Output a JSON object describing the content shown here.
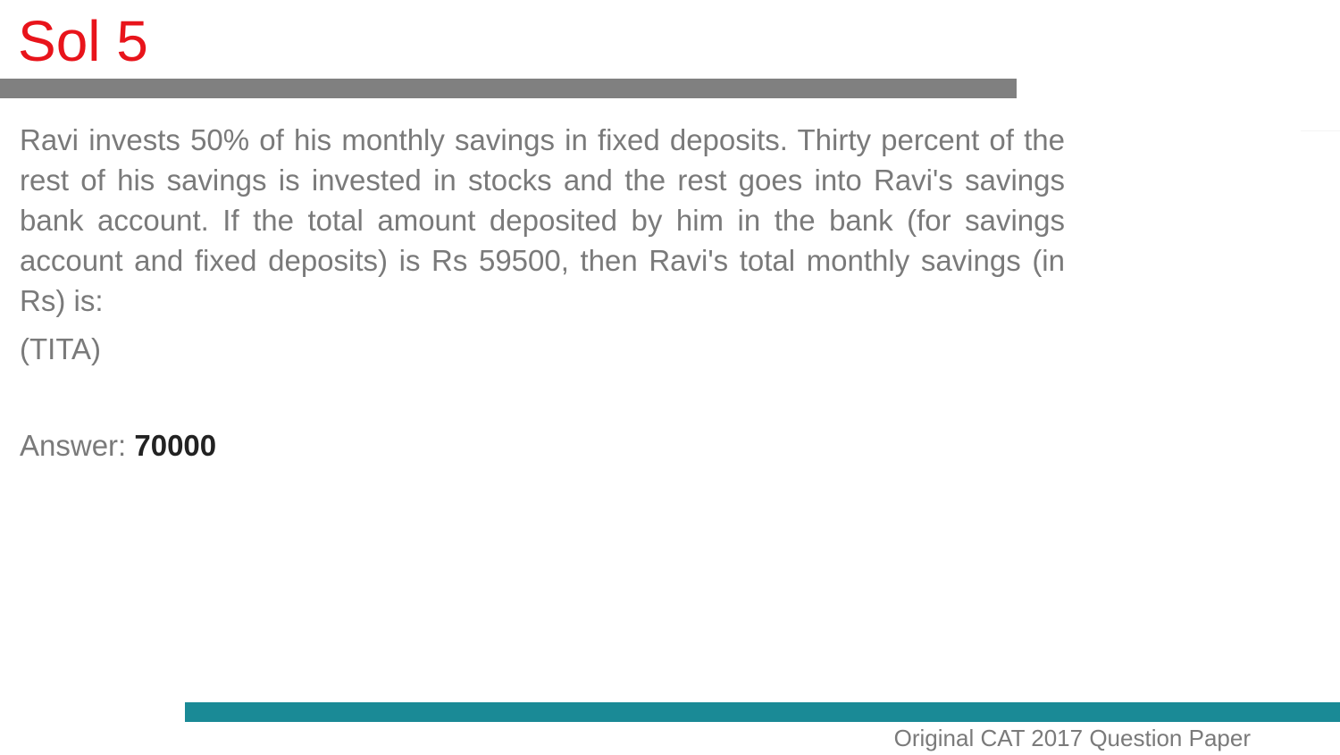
{
  "slide": {
    "title": "Sol 5",
    "question": "Ravi invests 50% of his monthly savings in fixed deposits. Thirty percent of the rest of his savings is invested in stocks and the rest goes into Ravi's savings bank account. If the total amount deposited by him in the bank (for savings account and fixed deposits) is Rs 59500, then Ravi's total monthly savings (in Rs) is:",
    "question_type": "(TITA)",
    "answer_label": "Answer: ",
    "answer_value": "70000"
  },
  "footer": {
    "text": "Original CAT 2017 Question Paper"
  },
  "colors": {
    "title": "#e8141b",
    "title_bar": "#808080",
    "footer_bar": "#1a8a96",
    "body_text": "#7a7a7a"
  }
}
